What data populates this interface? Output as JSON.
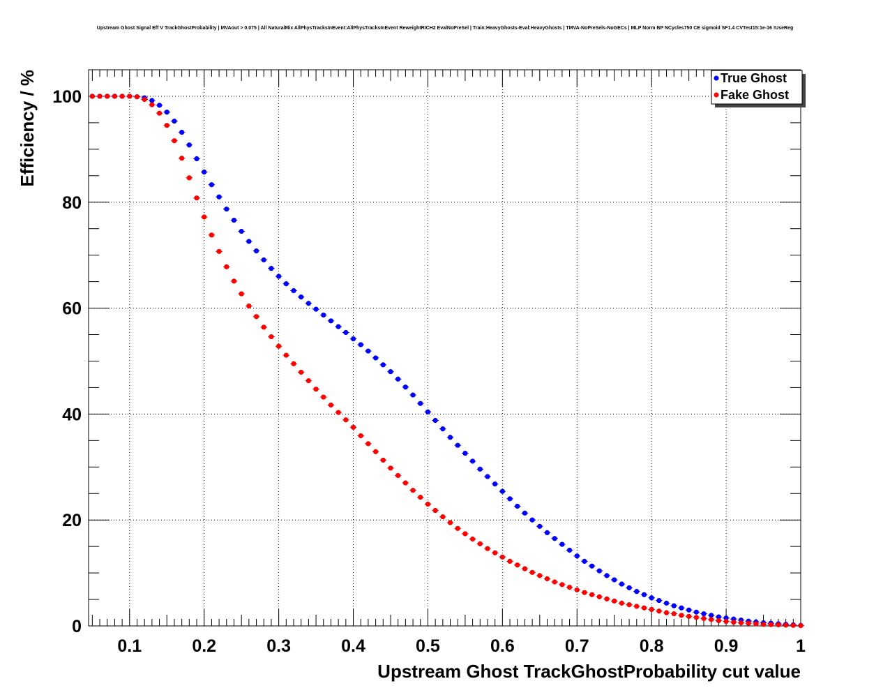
{
  "chart_data": {
    "type": "scatter",
    "title": "Upstream Ghost Signal Eff V TrackGhostProbability | MVAout > 0.075 | All NaturalMix AllPhysTracksInEvent:AllPhysTracksInEvent ReweightRICH2 EvalNoPreSel | Train:HeavyGhosts-Eval:HeavyGhosts | TMVA-NoPreSels-NoGECs | MLP Norm BP NCycles750 CE sigmoid SF1.4 CVTest15:1e-16 !UseReg",
    "xlabel": "Upstream Ghost TrackGhostProbability cut value",
    "ylabel": "Efficiency / %",
    "xlim": [
      0.045,
      1.0
    ],
    "ylim": [
      0,
      105
    ],
    "x_ticks": [
      0.1,
      0.2,
      0.3,
      0.4,
      0.5,
      0.6,
      0.7,
      0.8,
      0.9,
      1
    ],
    "x_tick_labels": [
      "0.1",
      "0.2",
      "0.3",
      "0.4",
      "0.5",
      "0.6",
      "0.7",
      "0.8",
      "0.9",
      "1"
    ],
    "y_ticks": [
      0,
      20,
      40,
      60,
      80,
      100
    ],
    "y_tick_labels": [
      "0",
      "20",
      "40",
      "60",
      "80",
      "100"
    ],
    "grid": true,
    "legend_position": "top-right",
    "x": [
      0.05,
      0.06,
      0.07,
      0.08,
      0.09,
      0.1,
      0.11,
      0.12,
      0.13,
      0.14,
      0.15,
      0.16,
      0.17,
      0.18,
      0.19,
      0.2,
      0.21,
      0.22,
      0.23,
      0.24,
      0.25,
      0.26,
      0.27,
      0.28,
      0.29,
      0.3,
      0.31,
      0.32,
      0.33,
      0.34,
      0.35,
      0.36,
      0.37,
      0.38,
      0.39,
      0.4,
      0.41,
      0.42,
      0.43,
      0.44,
      0.45,
      0.46,
      0.47,
      0.48,
      0.49,
      0.5,
      0.51,
      0.52,
      0.53,
      0.54,
      0.55,
      0.56,
      0.57,
      0.58,
      0.59,
      0.6,
      0.61,
      0.62,
      0.63,
      0.64,
      0.65,
      0.66,
      0.67,
      0.68,
      0.69,
      0.7,
      0.71,
      0.72,
      0.73,
      0.74,
      0.75,
      0.76,
      0.77,
      0.78,
      0.79,
      0.8,
      0.81,
      0.82,
      0.83,
      0.84,
      0.85,
      0.86,
      0.87,
      0.88,
      0.89,
      0.9,
      0.91,
      0.92,
      0.93,
      0.94,
      0.95,
      0.96,
      0.97,
      0.98,
      0.99,
      1.0
    ],
    "series": [
      {
        "name": "True Ghost",
        "color": "#0000ff",
        "values": [
          100,
          100,
          100,
          100,
          100,
          100,
          99.9,
          99.7,
          99.2,
          98.3,
          97.0,
          95.3,
          93.2,
          90.8,
          88.2,
          85.7,
          83.3,
          81.0,
          78.7,
          76.6,
          74.5,
          72.6,
          70.8,
          69.1,
          67.5,
          66.0,
          64.6,
          63.3,
          62.1,
          60.9,
          59.8,
          58.7,
          57.6,
          56.5,
          55.4,
          54.2,
          53.1,
          51.9,
          50.6,
          49.3,
          48.0,
          46.6,
          45.1,
          43.6,
          42.0,
          40.4,
          38.8,
          37.2,
          35.6,
          34.1,
          32.6,
          31.1,
          29.6,
          28.2,
          26.8,
          25.4,
          24.0,
          22.6,
          21.3,
          20.0,
          18.8,
          17.6,
          16.5,
          15.4,
          14.3,
          13.2,
          12.2,
          11.3,
          10.4,
          9.5,
          8.7,
          7.9,
          7.2,
          6.5,
          5.9,
          5.3,
          4.8,
          4.3,
          3.8,
          3.4,
          3.0,
          2.6,
          2.3,
          2.0,
          1.7,
          1.5,
          1.3,
          1.1,
          0.9,
          0.75,
          0.6,
          0.5,
          0.4,
          0.3,
          0.2,
          0.1
        ]
      },
      {
        "name": "Fake Ghost",
        "color": "#ff0000",
        "values": [
          100,
          100,
          100,
          100,
          100,
          100,
          99.9,
          99.4,
          98.4,
          96.8,
          94.5,
          91.6,
          88.3,
          84.6,
          80.8,
          77.2,
          73.8,
          70.7,
          67.8,
          65.1,
          62.7,
          60.4,
          58.4,
          56.4,
          54.6,
          52.8,
          51.1,
          49.5,
          47.9,
          46.3,
          44.7,
          43.2,
          41.7,
          40.3,
          38.9,
          37.5,
          35.9,
          34.4,
          32.9,
          31.3,
          29.8,
          28.4,
          27.0,
          25.6,
          24.3,
          23.0,
          21.8,
          20.6,
          19.5,
          18.4,
          17.4,
          16.4,
          15.5,
          14.6,
          13.8,
          13.0,
          12.2,
          11.5,
          10.8,
          10.1,
          9.5,
          8.9,
          8.3,
          7.8,
          7.3,
          6.8,
          6.3,
          5.9,
          5.5,
          5.1,
          4.7,
          4.3,
          4.0,
          3.7,
          3.4,
          3.1,
          2.8,
          2.5,
          2.3,
          2.0,
          1.8,
          1.6,
          1.4,
          1.2,
          1.0,
          0.85,
          0.7,
          0.6,
          0.5,
          0.4,
          0.3,
          0.25,
          0.2,
          0.15,
          0.1,
          0.05
        ]
      }
    ]
  }
}
